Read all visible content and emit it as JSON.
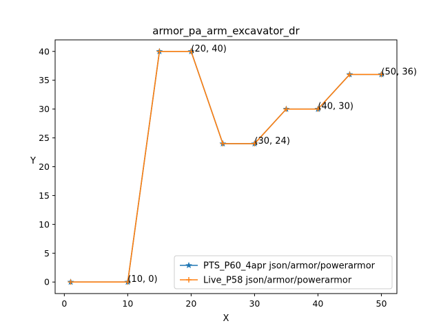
{
  "chart_data": {
    "type": "line",
    "title": "armor_pa_arm_excavator_dr",
    "xlabel": "X",
    "ylabel": "Y",
    "xlim": [
      -1.45,
      52.45
    ],
    "ylim": [
      -2,
      42
    ],
    "xticks": [
      0,
      10,
      20,
      30,
      40,
      50
    ],
    "yticks": [
      0,
      5,
      10,
      15,
      20,
      25,
      30,
      35,
      40
    ],
    "grid": false,
    "legend_position": "lower-right",
    "x": [
      1,
      10,
      15,
      20,
      25,
      30,
      35,
      40,
      45,
      50
    ],
    "series": [
      {
        "name": "PTS_P60_4apr json/armor/powerarmor",
        "color": "#1f77b4",
        "marker": "star",
        "values": [
          0,
          0,
          40,
          40,
          24,
          24,
          30,
          30,
          36,
          36
        ]
      },
      {
        "name": "Live_P58 json/armor/powerarmor",
        "color": "#ff7f0e",
        "marker": "plus",
        "values": [
          0,
          0,
          40,
          40,
          24,
          24,
          30,
          30,
          36,
          36
        ]
      }
    ],
    "annotations": [
      {
        "x": 10,
        "y": 0,
        "text": "(10, 0)"
      },
      {
        "x": 20,
        "y": 40,
        "text": "(20, 40)"
      },
      {
        "x": 30,
        "y": 24,
        "text": "(30, 24)"
      },
      {
        "x": 40,
        "y": 30,
        "text": "(40, 30)"
      },
      {
        "x": 50,
        "y": 36,
        "text": "(50, 36)"
      }
    ]
  }
}
